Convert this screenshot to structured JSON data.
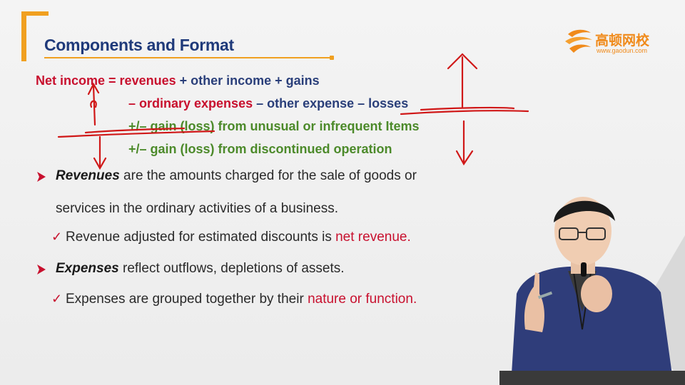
{
  "slide": {
    "title": "Components and Format",
    "logo": {
      "name_cn": "高顿网校",
      "url": "www.gaodun.com"
    },
    "equation": {
      "line1": {
        "lhs": "Net income",
        "eq": " = ",
        "revenues": "revenues",
        "rest": " + other income + gains"
      },
      "line2": {
        "minus": "– ",
        "ordinary": "ordinary expenses",
        "rest": " – other expense – losses"
      },
      "line3": "+/– gain (loss) from unusual or infrequent Items",
      "line4": "+/– gain (loss) from discontinued operation"
    },
    "bullets": [
      {
        "term": "Revenues",
        "text_a": " are the amounts charged for the sale of goods or",
        "text_b": "services in the ordinary activities of a business.",
        "sub": {
          "text": "Revenue adjusted for estimated discounts is ",
          "highlight": "net revenue",
          "end": "."
        }
      },
      {
        "term": "Expenses",
        "text_a": " reflect outflows, depletions of assets.",
        "sub": {
          "text": "Expenses are grouped together by their ",
          "highlight": "nature or function",
          "end": "."
        }
      }
    ],
    "icons": {
      "bullet": "triangle-arrow-icon",
      "sub_bullet": "checkmark-icon",
      "check_glyph": "✓"
    },
    "colors": {
      "accent": "#f0a020",
      "title": "#1f3a7a",
      "red": "#c8102e",
      "green": "#4c8a2a",
      "navy": "#2a3f7a"
    }
  }
}
